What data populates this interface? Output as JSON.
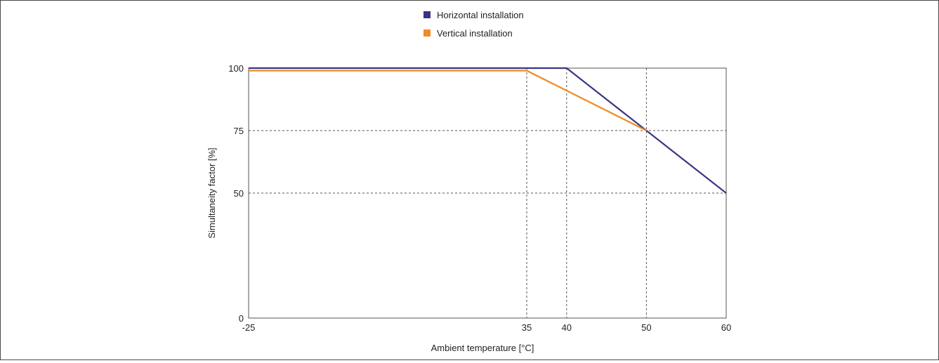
{
  "chart_data": {
    "type": "line",
    "xlabel": "Ambient temperature [°C]",
    "ylabel": "Simultaneity factor [%]",
    "x_ticks": [
      -25,
      35,
      40,
      50,
      60
    ],
    "y_ticks": [
      0,
      50,
      75,
      100
    ],
    "xlim": [
      -25,
      60
    ],
    "ylim": [
      0,
      100
    ],
    "x_scale": "piecewise (-25 to 35 compressed)",
    "grid": "dashed lines at x = 35, 40, 50 and y = 50, 75",
    "legend_position": "top-center",
    "series": [
      {
        "name": "Horizontal installation",
        "color": "#3b3480",
        "x": [
          -25,
          40,
          60
        ],
        "y": [
          100,
          100,
          50
        ]
      },
      {
        "name": "Vertical installation",
        "color": "#f08a24",
        "x": [
          -25,
          35,
          50
        ],
        "y": [
          99,
          99,
          75
        ]
      }
    ]
  }
}
